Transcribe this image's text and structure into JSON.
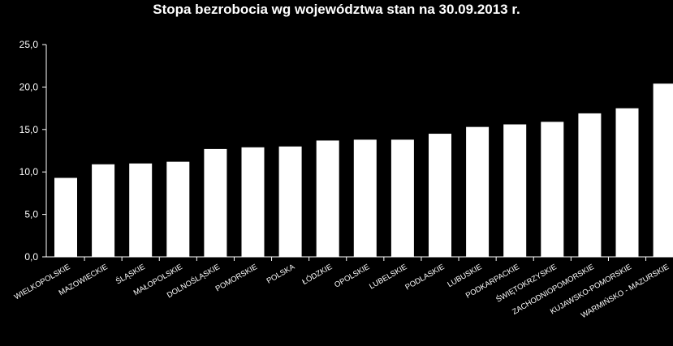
{
  "chart_data": {
    "type": "bar",
    "title": "Stopa bezrobocia wg województwa stan na 30.09.2013 r.",
    "xlabel": "",
    "ylabel": "",
    "ylim": [
      0,
      25
    ],
    "yticks": [
      "0,0",
      "5,0",
      "10,0",
      "15,0",
      "20,0",
      "25,0"
    ],
    "grid": false,
    "colors": {
      "background": "#000000",
      "bar": "#ffffff",
      "axis": "#ffffff"
    },
    "categories": [
      "WIELKOPOLSKIE",
      "MAZOWIECKIE",
      "ŚLĄSKIE",
      "MAŁOPOLSKIE",
      "DOLNOŚLĄSKIE",
      "POMORSKIE",
      "POLSKA",
      "ŁÓDZKIE",
      "OPOLSKIE",
      "LUBELSKIE",
      "PODLASKIE",
      "LUBUSKIE",
      "PODKARPACKIE",
      "ŚWIĘTOKRZYSKIE",
      "ZACHODNIOPOMORSKIE",
      "KUJAWSKO-POMORSKIE",
      "WARMIŃSKO - MAZURSKIE"
    ],
    "values": [
      9.3,
      10.9,
      11.0,
      11.2,
      12.7,
      12.9,
      13.0,
      13.7,
      13.8,
      13.8,
      14.5,
      15.3,
      15.6,
      15.9,
      16.9,
      17.5,
      20.4
    ]
  }
}
